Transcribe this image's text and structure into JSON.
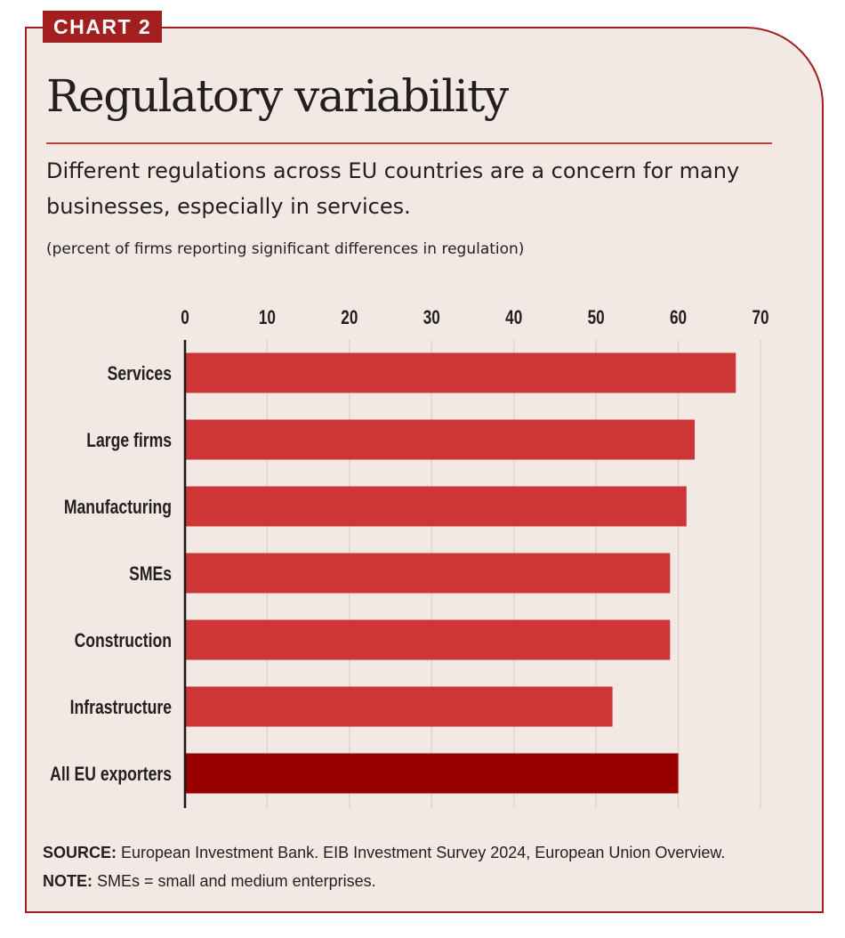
{
  "badge": "CHART 2",
  "title": "Regulatory variability",
  "subtitle": "Different regulations across EU countries are a concern for many businesses, especially in services.",
  "units": "(percent of firms reporting significant differences in regulation)",
  "chart_data": {
    "type": "bar",
    "orientation": "horizontal",
    "categories": [
      "Services",
      "Large firms",
      "Manufacturing",
      "SMEs",
      "Construction",
      "Infrastructure",
      "All EU exporters"
    ],
    "values": [
      67,
      62,
      61,
      59,
      59,
      52,
      60
    ],
    "xlim": [
      0,
      70
    ],
    "xticks": [
      0,
      10,
      20,
      30,
      40,
      50,
      60,
      70
    ],
    "x_axis_position": "top",
    "grid": true,
    "highlight_category": "All EU exporters",
    "colors": {
      "bar": "#cd3537",
      "highlight": "#990000",
      "grid": "#dcd4d0",
      "axis": "#1a1a1a"
    }
  },
  "footer": {
    "source_label": "SOURCE:",
    "source_text": " European Investment Bank. EIB Investment Survey 2024, European Union Overview.",
    "note_label": "NOTE:",
    "note_text": " SMEs = small and medium enterprises."
  },
  "colors": {
    "accent": "#a31f1f",
    "background": "#f3e9e4"
  }
}
